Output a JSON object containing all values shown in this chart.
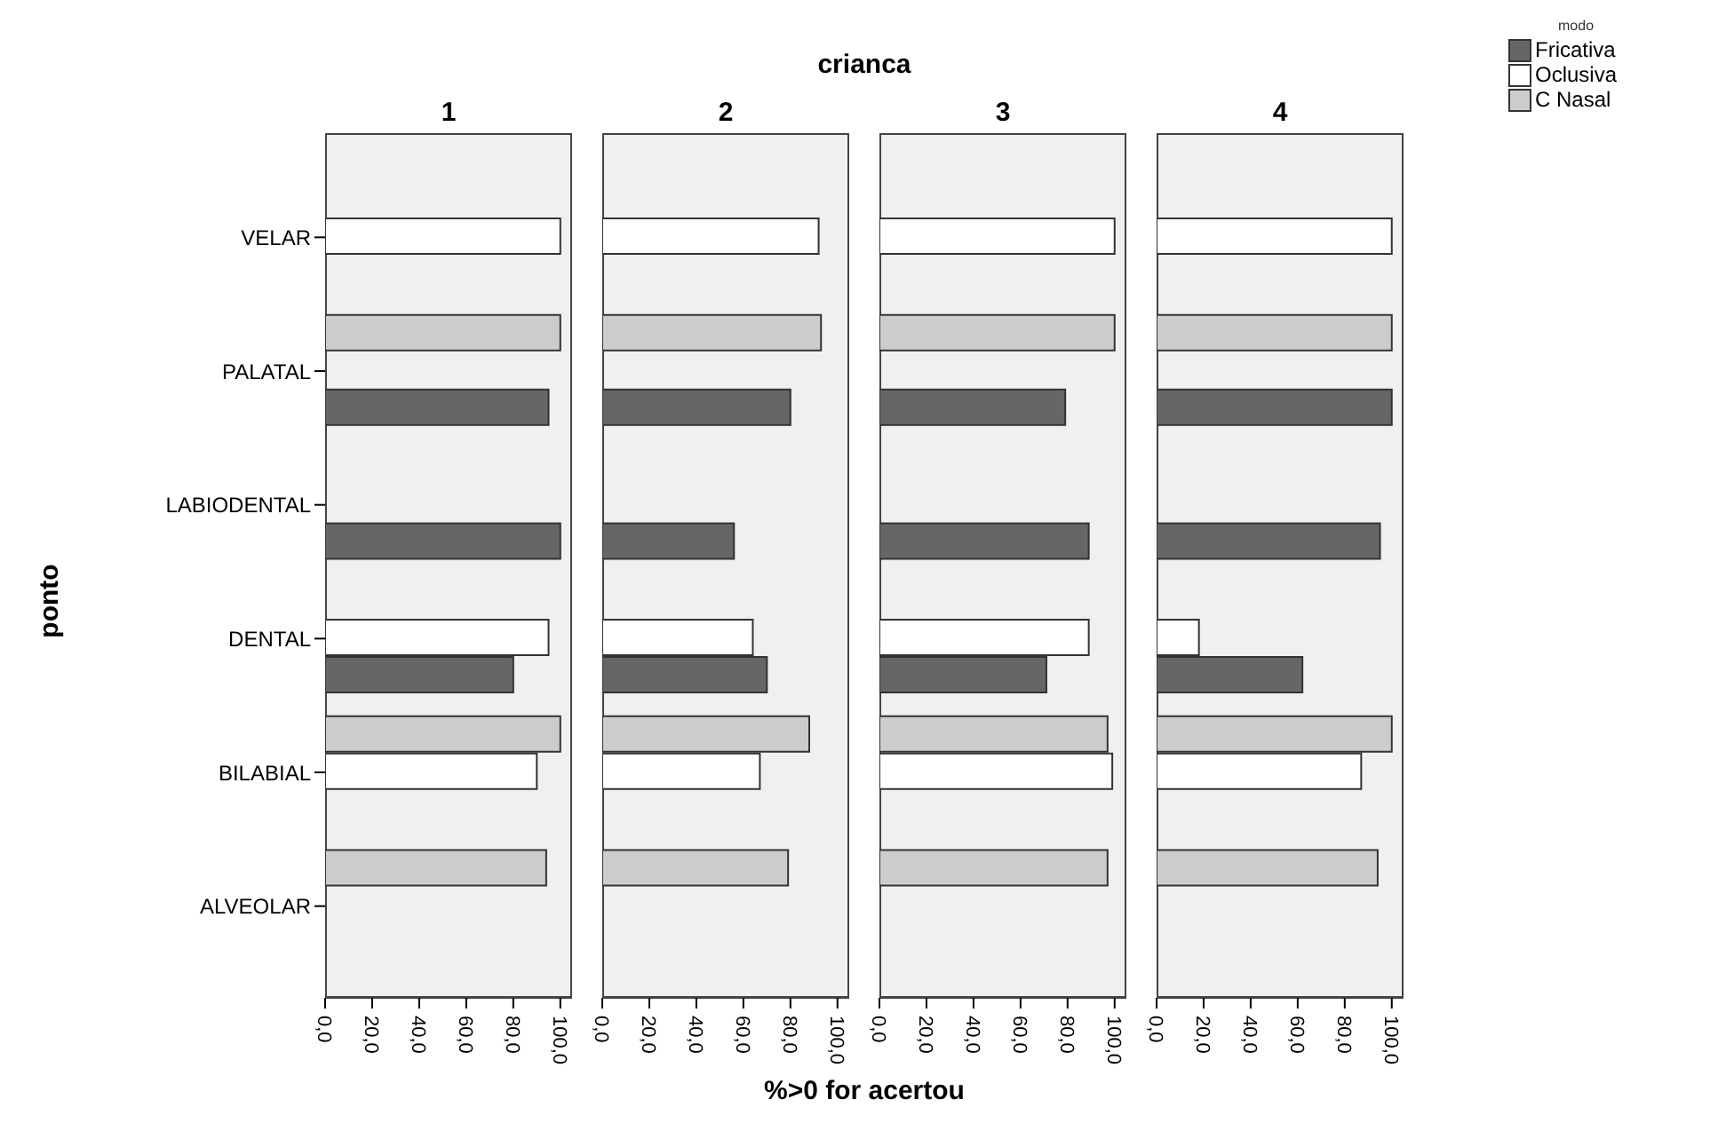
{
  "chart_data": [
    {
      "type": "bar",
      "orientation": "horizontal",
      "subtitle": "1",
      "ylabel": "ponto",
      "legend": "top right",
      "legend_title": "modo",
      "categories": [
        "VELAR",
        "PALATAL",
        "LABIODENTAL",
        "DENTAL",
        "BILABIAL",
        "ALVEOLAR"
      ],
      "xlim": [
        0,
        105
      ],
      "xticks": [
        {
          "value": 0,
          "label": "0,0"
        },
        {
          "value": 20,
          "label": "20,0"
        },
        {
          "value": 40,
          "label": "40,0"
        },
        {
          "value": 60,
          "label": "60,0"
        },
        {
          "value": 80,
          "label": "80,0"
        },
        {
          "value": 100,
          "label": "100,0"
        }
      ],
      "series": [
        {
          "name": "C Nasal",
          "color": "#cccccc",
          "values": [
            null,
            100,
            null,
            null,
            100,
            94
          ]
        },
        {
          "name": "Oclusiva",
          "color": "#ffffff",
          "values": [
            100,
            null,
            null,
            95,
            90,
            null
          ]
        },
        {
          "name": "Fricativa",
          "color": "#666666",
          "values": [
            null,
            95,
            100,
            80,
            null,
            null
          ]
        }
      ]
    },
    {
      "type": "bar",
      "orientation": "horizontal",
      "title": "crianca",
      "xlabel": "%>0 for acertou",
      "subtitle": "2",
      "tick_labels": "x",
      "categories": [
        null,
        null,
        null,
        null,
        null,
        null
      ],
      "xlim": [
        0,
        105
      ],
      "xticks": [
        {
          "value": 0,
          "label": "0,0"
        },
        {
          "value": 20,
          "label": "20,0"
        },
        {
          "value": 40,
          "label": "40,0"
        },
        {
          "value": 60,
          "label": "60,0"
        },
        {
          "value": 80,
          "label": "80,0"
        },
        {
          "value": 100,
          "label": "100,0"
        }
      ],
      "series": [
        {
          "color": "#cccccc",
          "values": [
            null,
            93,
            null,
            null,
            88,
            79
          ]
        },
        {
          "color": "#ffffff",
          "values": [
            92,
            null,
            null,
            64,
            67,
            null
          ]
        },
        {
          "color": "#666666",
          "values": [
            null,
            80,
            56,
            70,
            null,
            null
          ]
        }
      ]
    },
    {
      "type": "bar",
      "orientation": "horizontal",
      "subtitle": "3",
      "tick_labels": "x",
      "categories": [
        null,
        null,
        null,
        null,
        null,
        null
      ],
      "xlim": [
        0,
        105
      ],
      "xticks": [
        {
          "value": 0,
          "label": "0,0"
        },
        {
          "value": 20,
          "label": "20,0"
        },
        {
          "value": 40,
          "label": "40,0"
        },
        {
          "value": 60,
          "label": "60,0"
        },
        {
          "value": 80,
          "label": "80,0"
        },
        {
          "value": 100,
          "label": "100,0"
        }
      ],
      "series": [
        {
          "color": "#cccccc",
          "values": [
            null,
            100,
            null,
            null,
            97,
            97
          ]
        },
        {
          "color": "#ffffff",
          "values": [
            100,
            null,
            null,
            89,
            99,
            null
          ]
        },
        {
          "color": "#666666",
          "values": [
            null,
            79,
            89,
            71,
            null,
            null
          ]
        }
      ]
    },
    {
      "type": "bar",
      "orientation": "horizontal",
      "subtitle": "4",
      "tick_labels": "x",
      "categories": [
        null,
        null,
        null,
        null,
        null,
        null
      ],
      "xlim": [
        0,
        105
      ],
      "xticks": [
        {
          "value": 0,
          "label": "0,0"
        },
        {
          "value": 20,
          "label": "20,0"
        },
        {
          "value": 40,
          "label": "40,0"
        },
        {
          "value": 60,
          "label": "60,0"
        },
        {
          "value": 80,
          "label": "80,0"
        },
        {
          "value": 100,
          "label": "100,0"
        }
      ],
      "series": [
        {
          "color": "#cccccc",
          "values": [
            null,
            100,
            null,
            null,
            100,
            94
          ]
        },
        {
          "color": "#ffffff",
          "values": [
            100,
            null,
            null,
            18,
            87,
            null
          ]
        },
        {
          "color": "#666666",
          "values": [
            null,
            100,
            95,
            62,
            null,
            null
          ]
        }
      ]
    }
  ]
}
